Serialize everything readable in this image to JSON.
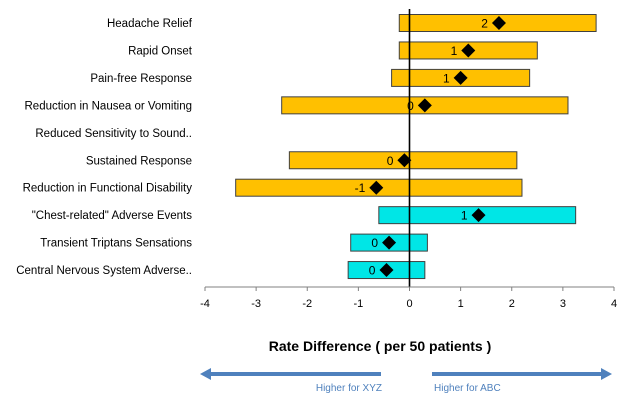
{
  "chart_data": {
    "type": "bar",
    "subtype": "floating-interval-with-point-estimate",
    "categories": [
      "Headache Relief",
      "Rapid Onset",
      "Pain-free Response",
      "Reduction in Nausea or Vomiting",
      "Reduced Sensitivity to Sound..",
      "Sustained Response",
      "Reduction in Functional Disability",
      "\"Chest-related\" Adverse Events",
      "Transient Triptans Sensations",
      "Central Nervous System Adverse.."
    ],
    "series": [
      {
        "low": [
          -0.2,
          -0.2,
          -0.35,
          -2.5,
          null,
          -2.35,
          -3.4,
          -0.6,
          -1.15,
          -1.2
        ],
        "high": [
          3.65,
          2.5,
          2.35,
          3.1,
          null,
          2.1,
          2.2,
          3.25,
          0.35,
          0.3
        ],
        "point": [
          1.75,
          1.15,
          1.0,
          0.3,
          null,
          -0.1,
          -0.65,
          1.35,
          -0.4,
          -0.45
        ],
        "labels": [
          "2",
          "1",
          "1",
          "0",
          "",
          "0",
          "-1",
          "1",
          "0",
          "0"
        ],
        "colors": [
          "#ffc000",
          "#ffc000",
          "#ffc000",
          "#ffc000",
          "#ffc000",
          "#ffc000",
          "#ffc000",
          "#00e6e6",
          "#00e6e6",
          "#00e6e6"
        ]
      }
    ],
    "xlabel": "Rate Difference ( per 50 patients )",
    "xlim": [
      -4,
      4
    ],
    "xticks": [
      "-4",
      "-3",
      "-2",
      "-1",
      "0",
      "1",
      "2",
      "3",
      "4"
    ],
    "grid": false,
    "legend": "none",
    "annotations": {
      "left_arrow": "Higher for XYZ",
      "right_arrow": "Higher for ABC"
    },
    "colors": {
      "favorable": "#ffc000",
      "adverse": "#00e6e6",
      "arrow": "#4f81bd",
      "marker": "#000000"
    }
  }
}
